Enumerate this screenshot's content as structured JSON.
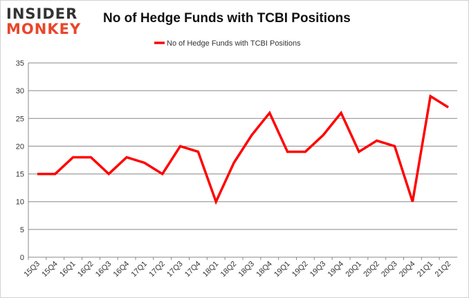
{
  "logo": {
    "line1": "INSIDER",
    "line2": "MONKEY"
  },
  "chart_data": {
    "type": "line",
    "title": "No of Hedge Funds with TCBI Positions",
    "xlabel": "",
    "ylabel": "",
    "categories": [
      "15Q3",
      "15Q4",
      "16Q1",
      "16Q2",
      "16Q3",
      "16Q4",
      "17Q1",
      "17Q2",
      "17Q3",
      "17Q4",
      "18Q1",
      "18Q2",
      "18Q3",
      "18Q4",
      "19Q1",
      "19Q2",
      "19Q3",
      "19Q4",
      "20Q1",
      "20Q2",
      "20Q3",
      "20Q4",
      "21Q1",
      "21Q2"
    ],
    "series": [
      {
        "name": "No of Hedge Funds with TCBI Positions",
        "color": "#ff0000",
        "values": [
          15,
          15,
          18,
          18,
          15,
          18,
          17,
          15,
          20,
          19,
          10,
          17,
          22,
          26,
          19,
          19,
          22,
          26,
          19,
          21,
          20,
          10,
          29,
          27
        ]
      }
    ],
    "ylim": [
      0,
      35
    ],
    "yticks": [
      0,
      5,
      10,
      15,
      20,
      25,
      30,
      35
    ],
    "grid": true,
    "legend": "top-center"
  }
}
